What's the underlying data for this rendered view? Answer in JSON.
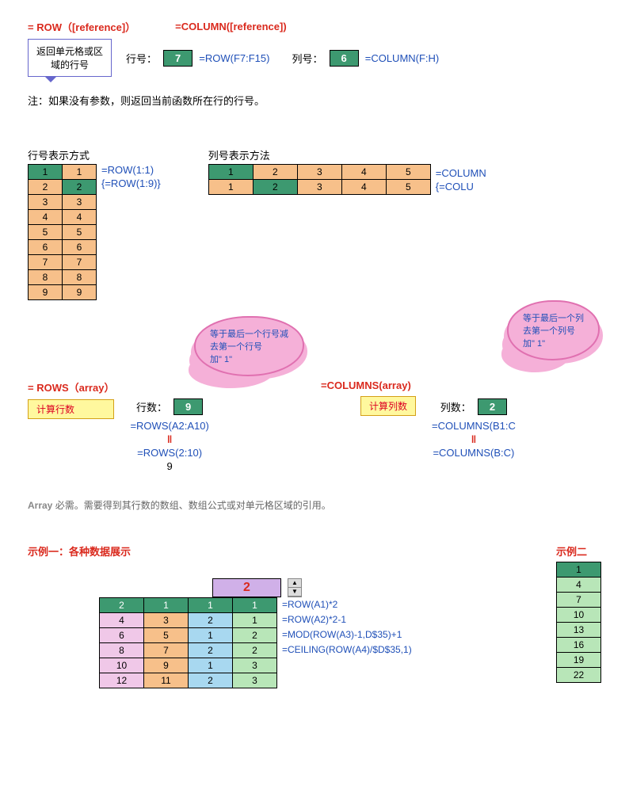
{
  "header": {
    "row_func": "= ROW（[reference]）",
    "col_func": "=COLUMN([reference])",
    "callout": "返回单元格或区\n域的行号",
    "row_label": "行号：",
    "row_val": "7",
    "row_formula": "=ROW(F7:F15)",
    "col_label": "列号：",
    "col_val": "6",
    "col_formula": "=COLUMN(F:H)",
    "note": "注：如果没有参数，则返回当前函数所在行的行号。"
  },
  "section2": {
    "row_title": "行号表示方式",
    "col_title": "列号表示方法",
    "row_table": [
      [
        1,
        1
      ],
      [
        2,
        2
      ],
      [
        3,
        3
      ],
      [
        4,
        4
      ],
      [
        5,
        5
      ],
      [
        6,
        6
      ],
      [
        7,
        7
      ],
      [
        8,
        8
      ],
      [
        9,
        9
      ]
    ],
    "row_formula1": "=ROW(1:1)",
    "row_formula2": "{=ROW(1:9)}",
    "col_table": [
      [
        1,
        2,
        3,
        4,
        5
      ],
      [
        1,
        2,
        3,
        4,
        5
      ]
    ],
    "col_formula1": "=COLUMN",
    "col_formula2": "{=COLU"
  },
  "section3": {
    "rows_func": "= ROWS（array）",
    "cols_func": "=COLUMNS(array)",
    "calc_rows": "计算行数",
    "calc_cols": "计算列数",
    "rows_label": "行数：",
    "rows_val": "9",
    "rows_f1": "=ROWS(A2:A10)",
    "rows_f2": "=ROWS(2:10)",
    "cols_label": "列数：",
    "cols_val": "2",
    "cols_f1": "=COLUMNS(B1:C",
    "cols_f2": "=COLUMNS(B:C)",
    "eq": "‖",
    "nine": "9",
    "cloud_rows": "等于最后一个行号减\n去第一个行号\n加\" 1\"",
    "cloud_cols": "等于最后一个列\n去第一个列号\n加\" 1\""
  },
  "array_note": {
    "label": "Array",
    "text": "必需。需要得到其行数的数组、数组公式或对单元格区域的引用。"
  },
  "example1": {
    "title": "示例一：各种数据展示",
    "spinner_val": "2",
    "rows": [
      {
        "c": [
          2,
          1,
          1,
          1
        ],
        "f": "=ROW(A1)*2"
      },
      {
        "c": [
          4,
          3,
          2,
          1
        ],
        "f": "=ROW(A2)*2-1"
      },
      {
        "c": [
          6,
          5,
          1,
          2
        ],
        "f": "=MOD(ROW(A3)-1,D$35)+1"
      },
      {
        "c": [
          8,
          7,
          2,
          2
        ],
        "f": "=CEILING(ROW(A4)/$D$35,1)"
      },
      {
        "c": [
          10,
          9,
          1,
          3
        ],
        "f": ""
      },
      {
        "c": [
          12,
          11,
          2,
          3
        ],
        "f": ""
      }
    ],
    "col_colors": [
      "#f0c8e8",
      "#f7c08a",
      "#a8d8f0",
      "#b8e6b8"
    ]
  },
  "example2": {
    "title": "示例二",
    "vals": [
      1,
      4,
      7,
      10,
      13,
      16,
      19,
      22
    ]
  },
  "colors": {
    "green": "#3d9970",
    "orange": "#f7c08a",
    "red": "#da2a1e",
    "blue": "#2050b8",
    "pink": "#f5b0d8",
    "yellow": "#fff89e",
    "lightgreen": "#b8e6b8"
  }
}
